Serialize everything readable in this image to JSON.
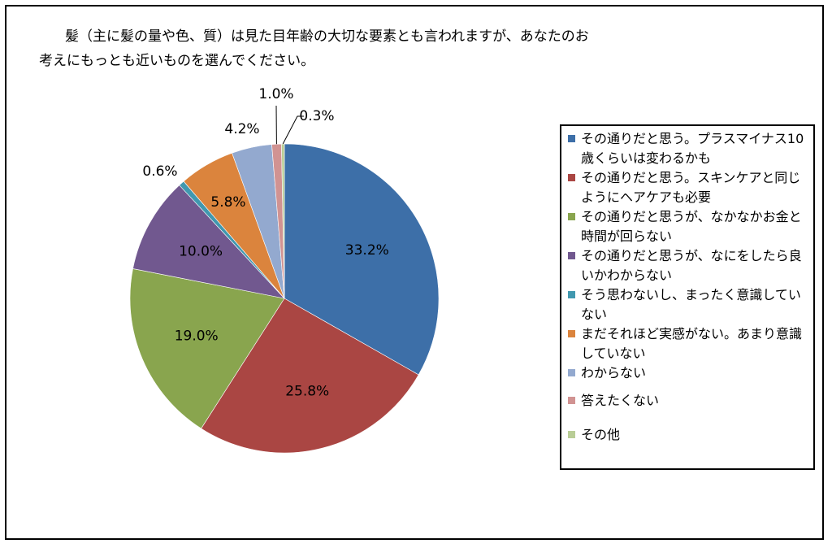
{
  "title": {
    "line1": "髪（主に髪の量や色、質）は見た目年齢の大切な要素とも言われますが、あなたのお",
    "line2": "考えにもっとも近いものを選んでください。"
  },
  "chart_data": {
    "type": "pie",
    "title": "髪（主に髪の量や色、質）は見た目年齢の大切な要素とも言われますが、あなたのお考えにもっとも近いものを選んでください。",
    "legend_position": "right",
    "slices": [
      {
        "label": "その通りだと思う。プラスマイナス10歳くらいは変わるかも",
        "value": 33.2,
        "display": "33.2%",
        "color": "#3d6fa8"
      },
      {
        "label": "その通りだと思う。スキンケアと同じようにヘアケアも必要",
        "value": 25.8,
        "display": "25.8%",
        "color": "#aa4643"
      },
      {
        "label": "その通りだと思うが、なかなかお金と時間が回らない",
        "value": 19.0,
        "display": "19.0%",
        "color": "#89a54e"
      },
      {
        "label": "その通りだと思うが、なにをしたら良いかわからない",
        "value": 10.0,
        "display": "10.0%",
        "color": "#71588f"
      },
      {
        "label": "そう思わないし、まったく意識していない",
        "value": 0.6,
        "display": "0.6%",
        "color": "#4198af"
      },
      {
        "label": "まだそれほど実感がない。あまり意識していない",
        "value": 5.8,
        "display": "5.8%",
        "color": "#db843d"
      },
      {
        "label": "わからない",
        "value": 4.2,
        "display": "4.2%",
        "color": "#93a9cf"
      },
      {
        "label": "答えたくない",
        "value": 1.0,
        "display": "1.0%",
        "color": "#d19392"
      },
      {
        "label": "その他",
        "value": 0.3,
        "display": "0.3%",
        "color": "#b9cd96"
      }
    ]
  }
}
